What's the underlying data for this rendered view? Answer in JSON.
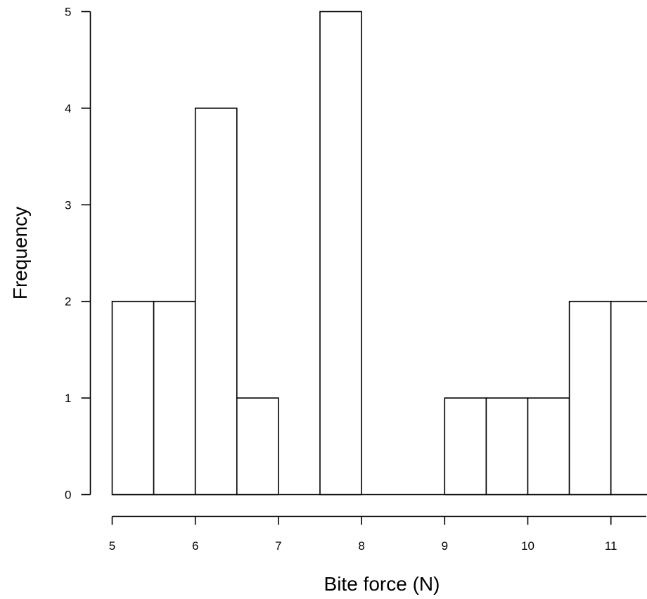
{
  "chart_data": {
    "type": "bar",
    "title": "",
    "xlabel": "Bite force (N)",
    "ylabel": "Frequency",
    "bin_width": 0.5,
    "bins": [
      {
        "start": 5.0,
        "end": 5.5,
        "count": 2
      },
      {
        "start": 5.5,
        "end": 6.0,
        "count": 2
      },
      {
        "start": 6.0,
        "end": 6.5,
        "count": 4
      },
      {
        "start": 6.5,
        "end": 7.0,
        "count": 1
      },
      {
        "start": 7.0,
        "end": 7.5,
        "count": 0
      },
      {
        "start": 7.5,
        "end": 8.0,
        "count": 5
      },
      {
        "start": 8.0,
        "end": 8.5,
        "count": 0
      },
      {
        "start": 8.5,
        "end": 9.0,
        "count": 0
      },
      {
        "start": 9.0,
        "end": 9.5,
        "count": 1
      },
      {
        "start": 9.5,
        "end": 10.0,
        "count": 1
      },
      {
        "start": 10.0,
        "end": 10.5,
        "count": 1
      },
      {
        "start": 10.5,
        "end": 11.0,
        "count": 2
      },
      {
        "start": 11.0,
        "end": 11.5,
        "count": 2
      }
    ],
    "xticks": [
      "5",
      "6",
      "7",
      "8",
      "9",
      "10",
      "11"
    ],
    "yticks": [
      "0",
      "1",
      "2",
      "3",
      "4",
      "5"
    ],
    "xlim": [
      5,
      11.5
    ],
    "ylim": [
      0,
      5
    ],
    "grid": false,
    "colors": {
      "bar_fill": "#ffffff",
      "bar_stroke": "#000000"
    }
  }
}
